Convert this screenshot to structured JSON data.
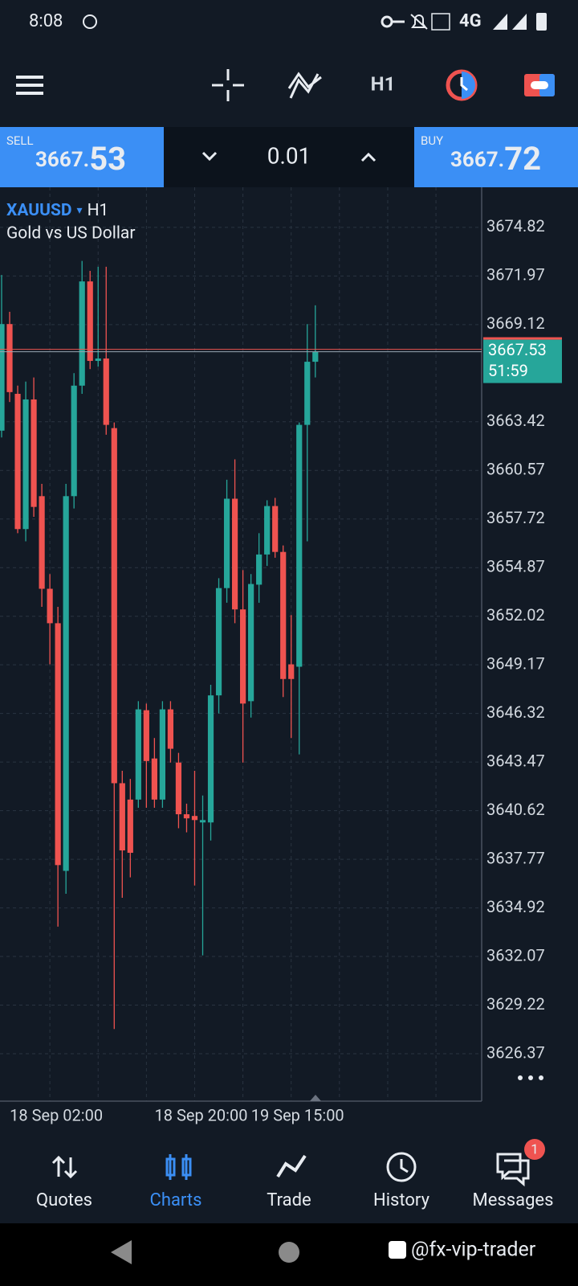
{
  "status_bar": {
    "time": "8:08",
    "network": "4G"
  },
  "toolbar": {
    "timeframe": "H1"
  },
  "trade_bar": {
    "sell": {
      "label": "SELL",
      "price": "3667.",
      "pips": "53"
    },
    "lot": "0.01",
    "buy": {
      "label": "BUY",
      "price": "3667.",
      "pips": "72"
    }
  },
  "chart_data": {
    "type": "candlestick",
    "symbol": "XAUUSD",
    "timeframe": "H1",
    "subtitle": "Gold vs US Dollar",
    "categories": [
      null,
      null,
      null,
      null,
      null,
      null,
      "18 Sep 02:00",
      null,
      null,
      null,
      null,
      null,
      null,
      null,
      null,
      null,
      null,
      null,
      null,
      null,
      null,
      null,
      null,
      null,
      "18 Sep 20:00",
      null,
      null,
      null,
      null,
      null,
      null,
      null,
      null,
      null,
      null,
      null,
      "19 Sep 15:00",
      null,
      null,
      null
    ],
    "open": [
      3662.9,
      3669.15,
      3665.06,
      3657.13,
      3664.73,
      3659.06,
      3653.63,
      3651.61,
      3637.09,
      3659.06,
      3665.54,
      3671.65,
      3666.99,
      3667.13,
      3663.05,
      3642.23,
      3641.27,
      3641.27,
      3646.51,
      3643.68,
      3641.27,
      3646.56,
      3643.44,
      3640.41,
      3640.31,
      3639.93,
      3639.93,
      3647.38,
      3653.67,
      3658.91,
      3652.42,
      3647.04,
      3653.87,
      3655.64,
      3658.48,
      3655.79,
      3649.2,
      3649.06,
      3663.24,
      3666.94
    ],
    "high": [
      3672.03,
      3669.87,
      3665.54,
      3665.78,
      3666.02,
      3659.78,
      3654.49,
      3652.57,
      3659.78,
      3666.27,
      3672.85,
      3672.27,
      3672.51,
      3672.51,
      3663.38,
      3642.96,
      3642.48,
      3647.04,
      3646.9,
      3644.88,
      3647.04,
      3647.04,
      3644.01,
      3641.03,
      3642.96,
      3641.51,
      3648.0,
      3654.25,
      3660.02,
      3661.22,
      3654.73,
      3654.49,
      3656.89,
      3658.82,
      3658.96,
      3656.17,
      3652.09,
      3663.38,
      3669.15,
      3670.25
    ],
    "low": [
      3662.5,
      3664.58,
      3656.89,
      3656.41,
      3657.85,
      3652.57,
      3649.2,
      3633.82,
      3635.75,
      3658.34,
      3665.06,
      3666.51,
      3666.65,
      3662.66,
      3627.82,
      3635.51,
      3636.71,
      3640.79,
      3640.79,
      3640.79,
      3640.79,
      3643.44,
      3639.59,
      3639.35,
      3636.23,
      3632.14,
      3638.87,
      3646.32,
      3652.81,
      3651.61,
      3643.44,
      3646.08,
      3652.81,
      3654.97,
      3655.45,
      3647.28,
      3644.88,
      3643.92,
      3656.41,
      3666.02
    ],
    "close": [
      3669.15,
      3665.16,
      3657.13,
      3664.73,
      3658.43,
      3653.63,
      3651.61,
      3637.43,
      3659.06,
      3665.54,
      3671.65,
      3666.99,
      3667.13,
      3663.24,
      3642.23,
      3638.29,
      3638.15,
      3646.56,
      3643.53,
      3641.27,
      3646.56,
      3644.25,
      3640.41,
      3640.17,
      3640.07,
      3640.07,
      3647.38,
      3653.67,
      3658.91,
      3652.42,
      3646.9,
      3653.91,
      3655.64,
      3658.48,
      3655.79,
      3648.34,
      3648.34,
      3663.24,
      3666.94,
      3667.53
    ],
    "up_color": "#26a69a",
    "down_color": "#ef5350",
    "ylim": [
      3623.59,
      3677.17
    ],
    "yticks": [
      3674.82,
      3671.97,
      3669.12,
      3663.42,
      3660.57,
      3657.72,
      3654.87,
      3652.02,
      3649.17,
      3646.32,
      3643.47,
      3640.62,
      3637.77,
      3634.92,
      3632.07,
      3629.22,
      3626.37
    ],
    "grid": true,
    "current_price": {
      "value": 3667.53,
      "label": "3667.53",
      "timer": "51:59",
      "color": "#26a69a"
    }
  },
  "nav": [
    {
      "label": "Quotes"
    },
    {
      "label": "Charts"
    },
    {
      "label": "Trade"
    },
    {
      "label": "History"
    },
    {
      "label": "Messages",
      "badge": "1"
    }
  ],
  "watermark": "@fx-vip-trader"
}
